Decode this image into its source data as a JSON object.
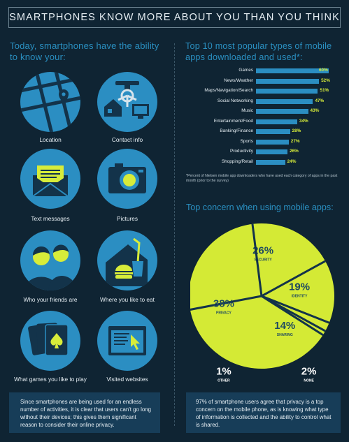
{
  "title": "SMARTPHONES KNOW MORE ABOUT YOU THAN YOU THINK",
  "left": {
    "heading": "Today, smartphones have the ability to know your:",
    "items": [
      {
        "label": "Location",
        "icon": "map-pin-icon"
      },
      {
        "label": "Contact info",
        "icon": "phone-house-icon"
      },
      {
        "label": "Text messages",
        "icon": "envelope-icon"
      },
      {
        "label": "Pictures",
        "icon": "camera-icon"
      },
      {
        "label": "Who your friends are",
        "icon": "friends-icon"
      },
      {
        "label": "Where you like to eat",
        "icon": "fast-food-icon"
      },
      {
        "label": "What games you like to play",
        "icon": "playing-cards-icon"
      },
      {
        "label": "Visited websites",
        "icon": "browser-cursor-icon"
      }
    ],
    "footer": "Since smartphones are being used for an endless number of activities, it is clear that users can't go long without their devices; this gives them significant reason to consider their online privacy."
  },
  "right": {
    "apps_heading": "Top 10 most popular types of mobile apps downloaded and used*:",
    "footnote": "*Percent of Nielsen mobile app downloaders who have used each category of apps in the past month (prior to the survey)",
    "concern_heading": "Top concern when using mobile apps:",
    "footer": "97% of smartphone users agree that privacy is a top concern on the mobile phone, as is knowing what type of information is collected and the ability to control what is shared."
  },
  "colors": {
    "background": "#0f2433",
    "accent_blue": "#2b8ec2",
    "pie_green": "#d4ea35",
    "value_green": "#d7ec3a",
    "box": "#173d58"
  },
  "chart_data": [
    {
      "type": "bar",
      "orientation": "horizontal",
      "title": "Top 10 most popular types of mobile apps downloaded and used*:",
      "categories": [
        "Games",
        "News/Weather",
        "Maps/Navigation/Search",
        "Social Networking",
        "Music",
        "Entertainment/Food",
        "Banking/Finance",
        "Sports",
        "Productivity",
        "Shopping/Retail"
      ],
      "values": [
        60,
        52,
        51,
        47,
        43,
        34,
        28,
        27,
        26,
        24
      ],
      "value_labels": [
        "60%",
        "52%",
        "51%",
        "47%",
        "43%",
        "34%",
        "28%",
        "27%",
        "26%",
        "24%"
      ],
      "unit": "%"
    },
    {
      "type": "pie",
      "title": "Top concern when using mobile apps:",
      "categories": [
        "SECURITY",
        "IDENTITY",
        "SHARING",
        "NONE",
        "OTHER",
        "PRIVACY"
      ],
      "values": [
        26,
        19,
        14,
        2,
        1,
        38
      ],
      "value_labels": [
        "26%",
        "19%",
        "14%",
        "2%",
        "1%",
        "38%"
      ],
      "unit": "%"
    }
  ]
}
